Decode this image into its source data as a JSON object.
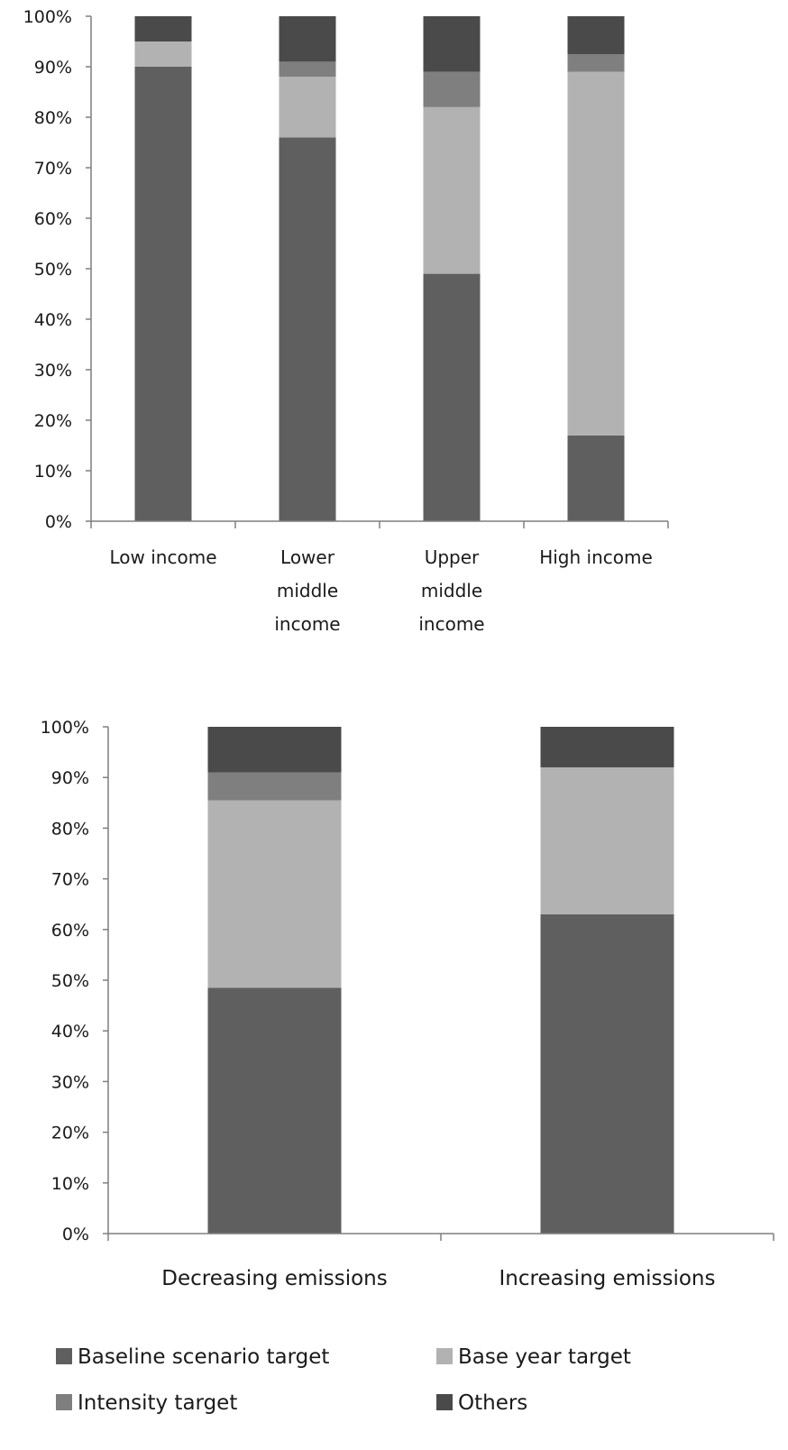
{
  "colors": {
    "baseline": "#5f5f5f",
    "base_year": "#b2b2b2",
    "intensity": "#7f7f7f",
    "others": "#4a4a4a"
  },
  "legend": {
    "items": [
      {
        "key": "baseline",
        "label": "Baseline scenario target"
      },
      {
        "key": "base_year",
        "label": "Base year target"
      },
      {
        "key": "intensity",
        "label": "Intensity target"
      },
      {
        "key": "others",
        "label": "Others"
      }
    ]
  },
  "chart_data": [
    {
      "type": "bar",
      "stacked": true,
      "title": "",
      "xlabel": "",
      "ylabel": "",
      "ylim": [
        0,
        100
      ],
      "yticks": [
        "0%",
        "10%",
        "20%",
        "30%",
        "40%",
        "50%",
        "60%",
        "70%",
        "80%",
        "90%",
        "100%"
      ],
      "categories": [
        [
          "Low income"
        ],
        [
          "Lower",
          "middle",
          "income"
        ],
        [
          "Upper",
          "middle",
          "income"
        ],
        [
          "High income"
        ]
      ],
      "series": [
        {
          "name": "Baseline scenario target",
          "key": "baseline",
          "values": [
            90,
            76,
            49,
            17
          ]
        },
        {
          "name": "Base year target",
          "key": "base_year",
          "values": [
            5,
            12,
            33,
            72
          ]
        },
        {
          "name": "Intensity target",
          "key": "intensity",
          "values": [
            0,
            3,
            7,
            3.5
          ]
        },
        {
          "name": "Others",
          "key": "others",
          "values": [
            5,
            9,
            11,
            7.5
          ]
        }
      ],
      "legend": "bottom"
    },
    {
      "type": "bar",
      "stacked": true,
      "title": "",
      "xlabel": "",
      "ylabel": "",
      "ylim": [
        0,
        100
      ],
      "yticks": [
        "0%",
        "10%",
        "20%",
        "30%",
        "40%",
        "50%",
        "60%",
        "70%",
        "80%",
        "90%",
        "100%"
      ],
      "categories": [
        [
          "Decreasing emissions"
        ],
        [
          "Increasing emissions"
        ]
      ],
      "series": [
        {
          "name": "Baseline scenario target",
          "key": "baseline",
          "values": [
            48.5,
            63
          ]
        },
        {
          "name": "Base year target",
          "key": "base_year",
          "values": [
            37,
            29
          ]
        },
        {
          "name": "Intensity target",
          "key": "intensity",
          "values": [
            5.5,
            0
          ]
        },
        {
          "name": "Others",
          "key": "others",
          "values": [
            9,
            8
          ]
        }
      ],
      "legend": "bottom"
    }
  ]
}
